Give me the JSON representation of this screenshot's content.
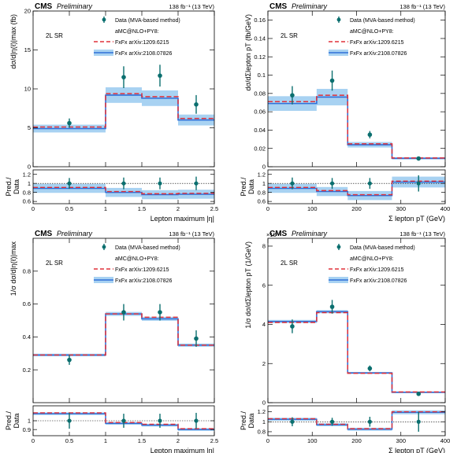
{
  "figure": {
    "cms_label": "CMS",
    "prelim_label": "Preliminary",
    "lumi_label": "138 fb⁻¹ (13 TeV)",
    "legend": {
      "data": "Data (MVA-based method)",
      "mc_header": "aMC@NLO+PY8:",
      "fxfx1": "FxFx arXiv:1209.6215",
      "fxfx2": "FxFx arXiv:2108.07826"
    },
    "ratio_ylabel_1": "Pred./",
    "ratio_ylabel_2": "Data",
    "colors": {
      "data": "#0b6f6f",
      "fxfx1": "#e0303a",
      "fxfx2": "#2f6fd8",
      "band": "#a8d2f2"
    }
  },
  "chart_data": [
    {
      "type": "line",
      "region": "2L SR",
      "ylabel": "dσ/d|η(ℓ)|max (fb)",
      "xlabel": "Lepton maximum |η|",
      "x_edges": [
        0,
        1,
        1.5,
        2,
        2.5
      ],
      "xlim": [
        0,
        2.5
      ],
      "ylim": [
        0,
        20
      ],
      "xticks": [
        0,
        0.5,
        1,
        1.5,
        2,
        2.5
      ],
      "xtick_labels": [
        "0",
        "0.5",
        "1",
        "1.5",
        "2",
        "2.5"
      ],
      "yticks": [
        0,
        5,
        10,
        15,
        20
      ],
      "ytick_labels": [
        "0",
        "5",
        "10",
        "15",
        "20"
      ],
      "series": [
        {
          "name": "Data (MVA-based method)",
          "x": [
            0.5,
            1.25,
            1.75,
            2.25
          ],
          "values": [
            5.6,
            11.5,
            11.7,
            8.0
          ],
          "errors": [
            0.6,
            1.4,
            1.4,
            1.2
          ]
        },
        {
          "name": "FxFx arXiv:1209.6215",
          "values": [
            5.1,
            9.4,
            9.0,
            6.2
          ]
        },
        {
          "name": "FxFx arXiv:2108.07826",
          "values": [
            4.9,
            9.2,
            8.8,
            6.0
          ],
          "band": [
            0.5,
            1.0,
            1.0,
            0.7
          ]
        }
      ],
      "ratio": {
        "ylim": [
          0.55,
          1.3
        ],
        "yticks": [
          0.6,
          0.8,
          1,
          1.2
        ],
        "ytick_labels": [
          "0.6",
          "0.8",
          "1",
          "1.2"
        ],
        "data_errors": [
          0.12,
          0.13,
          0.13,
          0.15
        ],
        "fxfx1": [
          0.91,
          0.82,
          0.77,
          0.78
        ],
        "fxfx2": [
          0.89,
          0.8,
          0.75,
          0.76
        ],
        "band": [
          0.1,
          0.1,
          0.1,
          0.1
        ]
      }
    },
    {
      "type": "line",
      "region": "2L SR",
      "ylabel": "dσ/dΣlepton pT (fb/GeV)",
      "xlabel": "Σ lepton pT (GeV)",
      "x_edges": [
        0,
        110,
        180,
        280,
        400
      ],
      "xlim": [
        0,
        400
      ],
      "ylim": [
        0,
        0.17
      ],
      "xticks": [
        0,
        100,
        200,
        300,
        400
      ],
      "xtick_labels": [
        "0",
        "100",
        "200",
        "300",
        "400"
      ],
      "yticks": [
        0,
        0.02,
        0.04,
        0.06,
        0.08,
        0.1,
        0.12,
        0.14,
        0.16
      ],
      "ytick_labels": [
        "0",
        "0.02",
        "0.04",
        "0.06",
        "0.08",
        "0.1",
        "0.12",
        "0.14",
        "0.16"
      ],
      "series": [
        {
          "name": "Data (MVA-based method)",
          "x": [
            55,
            145,
            230,
            340
          ],
          "values": [
            0.078,
            0.094,
            0.035,
            0.009
          ],
          "errors": [
            0.01,
            0.011,
            0.004,
            0.002
          ]
        },
        {
          "name": "FxFx arXiv:1209.6215",
          "values": [
            0.071,
            0.078,
            0.025,
            0.0095
          ]
        },
        {
          "name": "FxFx arXiv:2108.07826",
          "values": [
            0.069,
            0.076,
            0.024,
            0.0092
          ],
          "band": [
            0.008,
            0.009,
            0.003,
            0.0012
          ]
        }
      ],
      "ratio": {
        "ylim": [
          0.55,
          1.3
        ],
        "yticks": [
          0.6,
          0.8,
          1,
          1.2
        ],
        "ytick_labels": [
          "0.6",
          "0.8",
          "1",
          "1.2"
        ],
        "data_errors": [
          0.13,
          0.12,
          0.12,
          0.18
        ],
        "fxfx1": [
          0.91,
          0.84,
          0.75,
          1.05
        ],
        "fxfx2": [
          0.89,
          0.82,
          0.73,
          1.03
        ],
        "band": [
          0.1,
          0.1,
          0.1,
          0.12
        ]
      }
    },
    {
      "type": "line",
      "region": "2L SR",
      "ylabel": "1/σ dσ/d|η(ℓ)|max",
      "xlabel": "Lepton maximum |η|",
      "x_edges": [
        0,
        1,
        1.5,
        2,
        2.5
      ],
      "xlim": [
        0,
        2.5
      ],
      "ylim": [
        0,
        1.0
      ],
      "xticks": [
        0,
        0.5,
        1,
        1.5,
        2,
        2.5
      ],
      "xtick_labels": [
        "0",
        "0.5",
        "1",
        "1.5",
        "2",
        "2.5"
      ],
      "yticks": [
        0.2,
        0.4,
        0.6,
        0.8
      ],
      "ytick_labels": [
        "0.2",
        "0.4",
        "0.6",
        "0.8"
      ],
      "series": [
        {
          "name": "Data (MVA-based method)",
          "x": [
            0.5,
            1.25,
            1.75,
            2.25
          ],
          "values": [
            0.26,
            0.55,
            0.55,
            0.39
          ],
          "errors": [
            0.03,
            0.05,
            0.05,
            0.05
          ]
        },
        {
          "name": "FxFx arXiv:1209.6215",
          "values": [
            0.29,
            0.54,
            0.52,
            0.35
          ]
        },
        {
          "name": "FxFx arXiv:2108.07826",
          "values": [
            0.29,
            0.54,
            0.51,
            0.35
          ],
          "band": [
            0.008,
            0.012,
            0.012,
            0.01
          ]
        }
      ],
      "ratio": {
        "ylim": [
          0.83,
          1.17
        ],
        "yticks": [
          0.9,
          1
        ],
        "ytick_labels": [
          "0.9",
          "1"
        ],
        "data_errors": [
          0.09,
          0.08,
          0.08,
          0.09
        ],
        "fxfx1": [
          1.09,
          0.98,
          0.96,
          0.91
        ],
        "fxfx2": [
          1.08,
          0.97,
          0.95,
          0.9
        ],
        "band": [
          0.015,
          0.015,
          0.015,
          0.015
        ]
      }
    },
    {
      "type": "line",
      "region": "2L SR",
      "ylabel": "1/σ dσ/dΣlepton pT (1/GeV)",
      "xlabel": "Σ lepton pT (GeV)",
      "exponent_label": "×10⁻³",
      "x_edges": [
        0,
        110,
        180,
        280,
        400
      ],
      "xlim": [
        0,
        400
      ],
      "ylim": [
        0,
        8.4
      ],
      "xticks": [
        0,
        100,
        200,
        300,
        400
      ],
      "xtick_labels": [
        "0",
        "100",
        "200",
        "300",
        "400"
      ],
      "yticks": [
        0,
        2,
        4,
        6,
        8
      ],
      "ytick_labels": [
        "0",
        "2",
        "4",
        "6",
        "8"
      ],
      "series": [
        {
          "name": "Data (MVA-based method)",
          "x": [
            55,
            145,
            230,
            340
          ],
          "values": [
            3.9,
            4.9,
            1.75,
            0.45
          ],
          "errors": [
            0.35,
            0.35,
            0.15,
            0.08
          ]
        },
        {
          "name": "FxFx arXiv:1209.6215",
          "values": [
            4.1,
            4.6,
            1.5,
            0.55
          ]
        },
        {
          "name": "FxFx arXiv:2108.07826",
          "values": [
            4.15,
            4.65,
            1.52,
            0.53
          ],
          "band": [
            0.08,
            0.08,
            0.05,
            0.04
          ]
        }
      ],
      "ratio": {
        "ylim": [
          0.72,
          1.32
        ],
        "yticks": [
          0.8,
          1,
          1.2
        ],
        "ytick_labels": [
          "0.8",
          "1",
          "1.2"
        ],
        "data_errors": [
          0.09,
          0.08,
          0.1,
          0.2
        ],
        "fxfx1": [
          1.06,
          0.95,
          0.86,
          1.2
        ],
        "fxfx2": [
          1.05,
          0.94,
          0.85,
          1.19
        ],
        "band": [
          0.03,
          0.03,
          0.03,
          0.04
        ]
      }
    }
  ]
}
